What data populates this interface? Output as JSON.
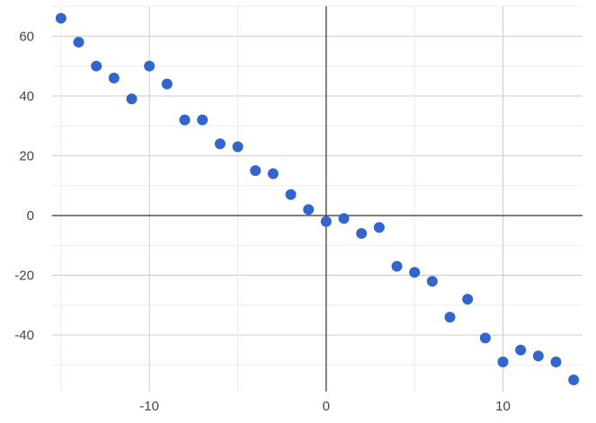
{
  "chart_data": {
    "type": "scatter",
    "title": "",
    "xlabel": "",
    "ylabel": "",
    "xlim": [
      -15.5,
      14.5
    ],
    "ylim": [
      -58,
      70
    ],
    "x_ticks": [
      -10,
      0,
      10
    ],
    "x_tick_labels": [
      "-10",
      "0",
      "10"
    ],
    "x_minor_ticks": [
      -15,
      -5,
      5
    ],
    "y_ticks": [
      -40,
      -20,
      0,
      20,
      40,
      60
    ],
    "y_tick_labels": [
      "-40",
      "-20",
      "0",
      "20",
      "40",
      "60"
    ],
    "grid": true,
    "legend": "none",
    "colors": {
      "point": "#3366cc",
      "grid_major": "#cccccc",
      "grid_minor": "#ebebeb",
      "axis_zero": "#333333"
    },
    "series": [
      {
        "x": [
          -15,
          -14,
          -13,
          -12,
          -11,
          -10,
          -9,
          -8,
          -7,
          -6,
          -5,
          -4,
          -3,
          -2,
          -1,
          0,
          1,
          2,
          3,
          4,
          5,
          6,
          7,
          8,
          9,
          10,
          11,
          12,
          13,
          14
        ],
        "y": [
          66,
          58,
          50,
          46,
          39,
          50,
          44,
          32,
          32,
          24,
          23,
          15,
          14,
          7,
          2,
          -2,
          -1,
          -6,
          -4,
          -17,
          -19,
          -22,
          -34,
          -28,
          -41,
          -49,
          -45,
          -47,
          -49,
          -55
        ]
      }
    ]
  }
}
